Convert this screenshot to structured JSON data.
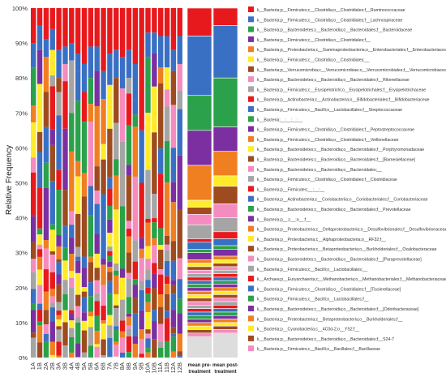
{
  "chart_data": {
    "type": "bar",
    "stacked": true,
    "ylabel": "Relative Frequency",
    "ylim": [
      0,
      100
    ],
    "yticks": [
      "0%",
      "10%",
      "20%",
      "30%",
      "40%",
      "50%",
      "60%",
      "70%",
      "80%",
      "90%",
      "100%"
    ],
    "categories": [
      "1A",
      "1B",
      "2A",
      "2B",
      "3A",
      "3B",
      "4A",
      "4B",
      "5A",
      "5B",
      "6A",
      "6B",
      "7A",
      "7B",
      "8A",
      "8B",
      "9A",
      "9B",
      "10A",
      "10B",
      "11A",
      "11B",
      "12A",
      "12B"
    ],
    "mean_categories": [
      "mean pre-treatment",
      "mean post-treatment"
    ],
    "taxa": [
      {
        "name": "k__Bacteria;p__Firmicutes;c__Clostridia;o__Clostridiales;f__Ruminococcaceae",
        "color": "#e8191c"
      },
      {
        "name": "k__Bacteria;p__Firmicutes;c__Clostridia;o__Clostridiales;f__Lachnospiraceae",
        "color": "#3a70c4"
      },
      {
        "name": "k__Bacteria;p__Bacteroidetes;c__Bacteroidia;o__Bacteroidales;f__Bacteroidaceae",
        "color": "#2aa14a"
      },
      {
        "name": "k__Bacteria;p__Firmicutes;c__Clostridia;o__Clostridiales;f__",
        "color": "#7b2fa0"
      },
      {
        "name": "k__Bacteria;p__Proteobacteria;c__Gammaproteobacteria;o__Enterobacteriales;f__Enterobacteriaceae",
        "color": "#f07f22"
      },
      {
        "name": "k__Bacteria;p__Firmicutes;c__Clostridia;o__Clostridiales;__",
        "color": "#ffeb2a"
      },
      {
        "name": "k__Bacteria;p__Verrucomicrobia;c__Verrucomicrobiae;o__Verrucomicrobiales;f__Verrucomicrobiaceae",
        "color": "#9e4b1f"
      },
      {
        "name": "k__Bacteria;p__Bacteroidetes;c__Bacteroidia;o__Bacteroidales;f__Rikenellaceae",
        "color": "#f48cbf"
      },
      {
        "name": "k__Bacteria;p__Firmicutes;c__Erysipelotrichi;o__Erysipelotrichales;f__Erysipelotrichaceae",
        "color": "#a5a5a5"
      },
      {
        "name": "k__Bacteria;p__Actinobacteria;c__Actinobacteria;o__Bifidobacteriales;f__Bifidobacteriaceae",
        "color": "#e8191c"
      },
      {
        "name": "k__Bacteria;p__Firmicutes;c__Bacilli;o__Lactobacillales;f__Streptococcaceae",
        "color": "#3a70c4"
      },
      {
        "name": "k__Bacteria;__;__;__;__",
        "color": "#2aa14a"
      },
      {
        "name": "k__Bacteria;p__Firmicutes;c__Clostridia;o__Clostridiales;f__Peptostreptococcaceae",
        "color": "#7b2fa0"
      },
      {
        "name": "k__Bacteria;p__Firmicutes;c__Clostridia;o__Clostridiales;f__Veillonellaceae",
        "color": "#f07f22"
      },
      {
        "name": "k__Bacteria;p__Bacteroidetes;c__Bacteroidia;o__Bacteroidales;f__Porphyromonadaceae",
        "color": "#ffeb2a"
      },
      {
        "name": "k__Bacteria;p__Bacteroidetes;c__Bacteroidia;o__Bacteroidales;f__[Barnesiellaceae]",
        "color": "#9e4b1f"
      },
      {
        "name": "k__Bacteria;p__Bacteroidetes;c__Bacteroidia;o__Bacteroidales;__",
        "color": "#f48cbf"
      },
      {
        "name": "k__Bacteria;p__Firmicutes;c__Clostridia;o__Clostridiales;f__Clostridiaceae",
        "color": "#a5a5a5"
      },
      {
        "name": "k__Bacteria;p__Firmicutes;__;__;__",
        "color": "#e8191c"
      },
      {
        "name": "k__Bacteria;p__Actinobacteria;c__Coriobacteriia;o__Coriobacteriales;f__Coriobacteriaceae",
        "color": "#3a70c4"
      },
      {
        "name": "k__Bacteria;p__Bacteroidetes;c__Bacteroidia;o__Bacteroidales;f__Prevotellaceae",
        "color": "#2aa14a"
      },
      {
        "name": "k__Bacteria;p__;c__;o__;f__",
        "color": "#7b2fa0"
      },
      {
        "name": "k__Bacteria;p__Proteobacteria;c__Deltaproteobacteria;o__Desulfovibrionales;f__Desulfovibrionaceae",
        "color": "#f07f22"
      },
      {
        "name": "k__Bacteria;p__Proteobacteria;c__Alphaproteobacteria;o__RF32;f__",
        "color": "#ffeb2a"
      },
      {
        "name": "k__Bacteria;p__Proteobacteria;c__Betaproteobacteria;o__Burkholderiales;f__Oxalobacteraceae",
        "color": "#9e4b1f"
      },
      {
        "name": "k__Bacteria;p__Bacteroidetes;c__Bacteroidia;o__Bacteroidales;f__[Paraprevotellaceae]",
        "color": "#f48cbf"
      },
      {
        "name": "k__Bacteria;p__Firmicutes;c__Bacilli;o__Lactobacillales;__",
        "color": "#a5a5a5"
      },
      {
        "name": "k__Archaea;p__Euryarchaeota;c__Methanobacteria;o__Methanobacteriales;f__Methanobacteriaceae",
        "color": "#e8191c"
      },
      {
        "name": "k__Bacteria;p__Firmicutes;c__Clostridia;o__Clostridiales;f__[Tissierellaceae]",
        "color": "#3a70c4"
      },
      {
        "name": "k__Bacteria;p__Firmicutes;c__Bacilli;o__Lactobacillales;f__",
        "color": "#2aa14a"
      },
      {
        "name": "k__Bacteria;p__Bacteroidetes;c__Bacteroidia;o__Bacteroidales;f__[Odoribacteraceae]",
        "color": "#7b2fa0"
      },
      {
        "name": "k__Bacteria;p__Proteobacteria;c__Betaproteobacteria;o__Burkholderiales;f__",
        "color": "#f07f22"
      },
      {
        "name": "k__Bacteria;p__Cyanobacteria;c__4C0d-2;o__YS2;f__",
        "color": "#ffeb2a"
      },
      {
        "name": "k__Bacteria;p__Bacteroidetes;c__Bacteroidia;o__Bacteroidales;f__S24-7",
        "color": "#9e4b1f"
      },
      {
        "name": "k__Bacteria;p__Firmicutes;c__Bacilli;o__Bacillales;f__Bacillaceae",
        "color": "#f48cbf"
      }
    ],
    "series_note": "",
    "sample_tops": [
      {
        "red": 90,
        "blue": 83
      },
      {
        "red": 95,
        "blue": 88
      },
      {
        "red": 91,
        "blue": 86
      },
      {
        "red": 94,
        "blue": 88
      },
      {
        "red": 88,
        "blue": 80
      },
      {
        "red": 89,
        "blue": 84
      },
      {
        "red": 90,
        "blue": 85
      },
      {
        "red": 87,
        "blue": 82
      },
      {
        "red": 84,
        "blue": 76
      },
      {
        "red": 89,
        "blue": 80
      },
      {
        "red": 89,
        "blue": 82
      },
      {
        "red": 82,
        "blue": 74
      },
      {
        "red": 87,
        "blue": 78
      },
      {
        "red": 88,
        "blue": 80
      },
      {
        "red": 86,
        "blue": 77
      },
      {
        "red": 88,
        "blue": 80
      },
      {
        "red": 84,
        "blue": 74
      },
      {
        "red": 65,
        "blue": 50
      },
      {
        "red": 93,
        "blue": 86
      },
      {
        "red": 93,
        "blue": 87
      },
      {
        "red": 92,
        "blue": 83
      },
      {
        "red": 92,
        "blue": 83
      },
      {
        "red": 88,
        "blue": 82
      },
      {
        "red": 92,
        "blue": 84
      }
    ],
    "mean_pre": [
      {
        "color": "#e8191c",
        "value": 8
      },
      {
        "color": "#3a70c4",
        "value": 17
      },
      {
        "color": "#2aa14a",
        "value": 10
      },
      {
        "color": "#7b2fa0",
        "value": 10
      },
      {
        "color": "#f07f22",
        "value": 10
      },
      {
        "color": "#ffeb2a",
        "value": 2
      },
      {
        "color": "#9e4b1f",
        "value": 2
      },
      {
        "color": "#f48cbf",
        "value": 3
      },
      {
        "color": "#a5a5a5",
        "value": 4
      },
      {
        "color": "#e8191c",
        "value": 1
      },
      {
        "color": "#3a70c4",
        "value": 2
      },
      {
        "color": "#2aa14a",
        "value": 1
      },
      {
        "color": "#7b2fa0",
        "value": 2
      },
      {
        "color": "#f07f22",
        "value": 1
      },
      {
        "color": "#ffeb2a",
        "value": 1
      },
      {
        "color": "#9e4b1f",
        "value": 1
      },
      {
        "color": "#f48cbf",
        "value": 1
      },
      {
        "color": "#a5a5a5",
        "value": 1
      },
      {
        "color": "#e8191c",
        "value": 1
      },
      {
        "color": "#3a70c4",
        "value": 1
      },
      {
        "color": "#2aa14a",
        "value": 1
      },
      {
        "color": "#7b2fa0",
        "value": 1
      },
      {
        "color": "#f07f22",
        "value": 1
      },
      {
        "color": "#ffeb2a",
        "value": 1
      },
      {
        "color": "#9e4b1f",
        "value": 1
      },
      {
        "color": "#f48cbf",
        "value": 1
      },
      {
        "color": "#a5a5a5",
        "value": 1
      },
      {
        "color": "#e8191c",
        "value": 1
      },
      {
        "color": "#3a70c4",
        "value": 1
      },
      {
        "color": "#2aa14a",
        "value": 1
      },
      {
        "color": "#7b2fa0",
        "value": 1
      },
      {
        "color": "#f07f22",
        "value": 1
      },
      {
        "color": "#ffeb2a",
        "value": 1
      },
      {
        "color": "#9e4b1f",
        "value": 1
      },
      {
        "color": "#f48cbf",
        "value": 1
      }
    ],
    "mean_post": [
      {
        "color": "#e8191c",
        "value": 5
      },
      {
        "color": "#3a70c4",
        "value": 15
      },
      {
        "color": "#2aa14a",
        "value": 14
      },
      {
        "color": "#7b2fa0",
        "value": 7
      },
      {
        "color": "#f07f22",
        "value": 7
      },
      {
        "color": "#ffeb2a",
        "value": 3
      },
      {
        "color": "#9e4b1f",
        "value": 5
      },
      {
        "color": "#f48cbf",
        "value": 4
      },
      {
        "color": "#a5a5a5",
        "value": 4
      },
      {
        "color": "#e8191c",
        "value": 2
      },
      {
        "color": "#3a70c4",
        "value": 2
      },
      {
        "color": "#2aa14a",
        "value": 1
      },
      {
        "color": "#7b2fa0",
        "value": 2
      },
      {
        "color": "#f07f22",
        "value": 1
      },
      {
        "color": "#ffeb2a",
        "value": 1
      },
      {
        "color": "#9e4b1f",
        "value": 1
      },
      {
        "color": "#f48cbf",
        "value": 1
      },
      {
        "color": "#a5a5a5",
        "value": 1
      },
      {
        "color": "#e8191c",
        "value": 1
      },
      {
        "color": "#3a70c4",
        "value": 1
      },
      {
        "color": "#2aa14a",
        "value": 1
      },
      {
        "color": "#7b2fa0",
        "value": 1
      },
      {
        "color": "#f07f22",
        "value": 1
      },
      {
        "color": "#ffeb2a",
        "value": 1
      },
      {
        "color": "#9e4b1f",
        "value": 1
      },
      {
        "color": "#f48cbf",
        "value": 1
      },
      {
        "color": "#a5a5a5",
        "value": 1
      },
      {
        "color": "#e8191c",
        "value": 1
      },
      {
        "color": "#3a70c4",
        "value": 1
      },
      {
        "color": "#2aa14a",
        "value": 1
      },
      {
        "color": "#7b2fa0",
        "value": 1
      },
      {
        "color": "#f07f22",
        "value": 1
      },
      {
        "color": "#ffeb2a",
        "value": 1
      },
      {
        "color": "#9e4b1f",
        "value": 1
      },
      {
        "color": "#f48cbf",
        "value": 1
      }
    ],
    "legend_position": "right"
  }
}
